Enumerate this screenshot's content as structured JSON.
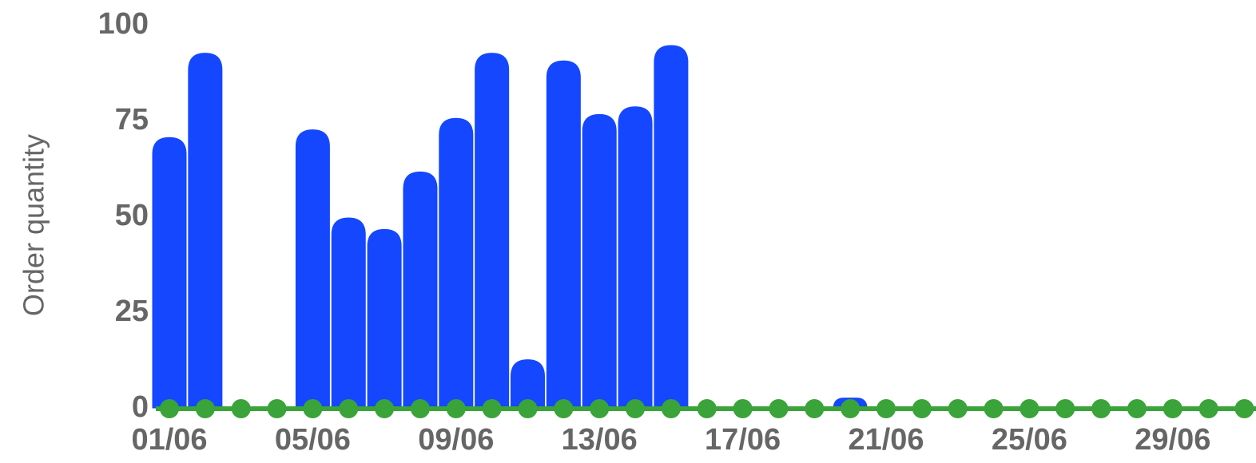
{
  "chart_data": {
    "type": "bar",
    "y_label": "Order quantity",
    "categories": [
      "01/06",
      null,
      null,
      null,
      "05/06",
      null,
      null,
      null,
      "09/06",
      null,
      null,
      null,
      "13/06",
      null,
      null,
      null,
      "17/06",
      null,
      null,
      null,
      "21/06",
      null,
      null,
      null,
      "25/06",
      null,
      null,
      null,
      "29/06",
      null,
      null
    ],
    "series": [
      {
        "type": "bar",
        "color": "#1447ff",
        "values": [
          71,
          93,
          0,
          0,
          73,
          50,
          47,
          62,
          76,
          93,
          13,
          91,
          77,
          79,
          95,
          0,
          0,
          0,
          0,
          3,
          0,
          0,
          0,
          0,
          0,
          0,
          0,
          0,
          0,
          0,
          0
        ]
      },
      {
        "type": "line",
        "color": "#3aa33a",
        "values": [
          0,
          0,
          0,
          0,
          0,
          0,
          0,
          0,
          0,
          0,
          0,
          0,
          0,
          0,
          0,
          0,
          0,
          0,
          0,
          0,
          0,
          0,
          0,
          0,
          0,
          0,
          0,
          0,
          0,
          0,
          0
        ]
      }
    ],
    "ylim": [
      0,
      100
    ],
    "yticks": [
      0,
      25,
      50,
      75,
      100
    ],
    "grid": false
  }
}
